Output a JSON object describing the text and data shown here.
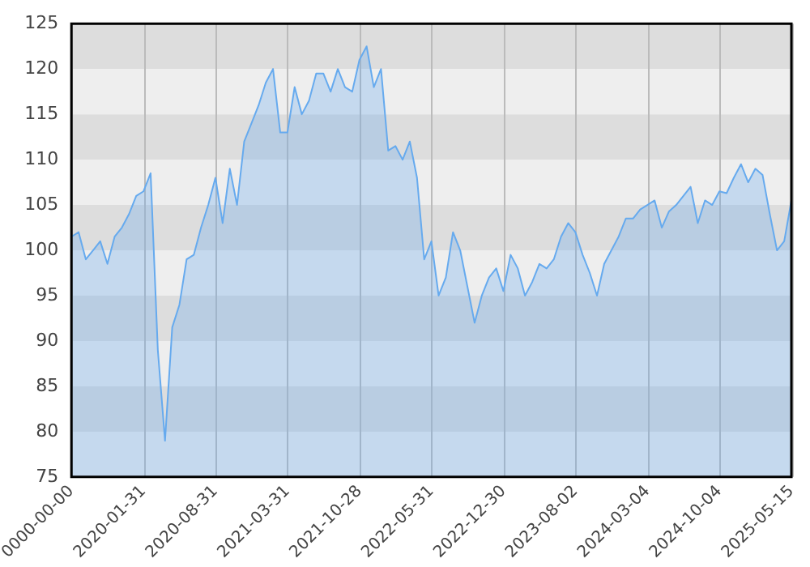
{
  "chart_data": {
    "type": "area",
    "grid": "x",
    "legend": false,
    "marker": "none",
    "categories": [
      "0000-00-00",
      null,
      null,
      null,
      null,
      null,
      null,
      null,
      null,
      null,
      "2020-01-31",
      null,
      null,
      null,
      null,
      null,
      null,
      null,
      null,
      null,
      "2020-08-31",
      null,
      null,
      null,
      null,
      null,
      null,
      null,
      null,
      null,
      "2021-03-31",
      null,
      null,
      null,
      null,
      null,
      null,
      null,
      null,
      null,
      "2021-10-28",
      null,
      null,
      null,
      null,
      null,
      null,
      null,
      null,
      null,
      "2022-05-31",
      null,
      null,
      null,
      null,
      null,
      null,
      null,
      null,
      null,
      "2022-12-30",
      null,
      null,
      null,
      null,
      null,
      null,
      null,
      null,
      null,
      "2023-08-02",
      null,
      null,
      null,
      null,
      null,
      null,
      null,
      null,
      null,
      "2024-03-04",
      null,
      null,
      null,
      null,
      null,
      null,
      null,
      null,
      null,
      "2024-10-04",
      null,
      null,
      null,
      null,
      null,
      null,
      null,
      null,
      null,
      "2025-05-15"
    ],
    "ylim": [
      75,
      125
    ],
    "yticks": [
      75,
      80,
      85,
      90,
      95,
      100,
      105,
      110,
      115,
      120,
      125
    ],
    "bands": [
      {
        "axis": "y",
        "from": 120,
        "to": 125,
        "color": "#dddddd"
      },
      {
        "axis": "y",
        "from": 115,
        "to": 120,
        "color": "#eeeeee"
      },
      {
        "axis": "y",
        "from": 110,
        "to": 115,
        "color": "#dddddd"
      },
      {
        "axis": "y",
        "from": 105,
        "to": 110,
        "color": "#eeeeee"
      },
      {
        "axis": "y",
        "from": 100,
        "to": 105,
        "color": "#dddddd"
      },
      {
        "axis": "y",
        "from": 95,
        "to": 100,
        "color": "#eeeeee"
      },
      {
        "axis": "y",
        "from": 90,
        "to": 95,
        "color": "#dddddd"
      },
      {
        "axis": "y",
        "from": 85,
        "to": 90,
        "color": "#eeeeee"
      },
      {
        "axis": "y",
        "from": 80,
        "to": 85,
        "color": "#dddddd"
      },
      {
        "axis": "y",
        "from": 75,
        "to": 80,
        "color": "#eeeeee"
      }
    ],
    "series": [
      {
        "color": "#66aaee",
        "values": [
          101.5,
          102,
          99,
          100,
          101,
          98.5,
          101.5,
          102.5,
          104,
          106,
          106.5,
          108.5,
          89,
          79,
          91.5,
          94,
          99,
          99.5,
          102.5,
          105,
          108,
          103,
          109,
          105,
          112,
          114,
          116,
          118.5,
          120,
          113,
          113,
          118,
          115,
          116.5,
          119.5,
          119.5,
          117.5,
          120,
          118,
          117.5,
          121,
          122.5,
          118,
          120,
          111,
          111.5,
          110,
          112,
          108,
          99,
          101,
          95,
          97,
          102,
          100,
          96,
          92,
          95,
          97,
          98,
          95.5,
          99.5,
          98,
          95,
          96.5,
          98.5,
          98,
          99,
          101.5,
          103,
          102,
          99.5,
          97.5,
          95,
          98.5,
          100,
          101.5,
          103.5,
          103.5,
          104.5,
          105,
          105.5,
          102.5,
          104.3,
          105,
          106,
          107,
          103,
          105.5,
          105,
          106.5,
          106.3,
          108,
          109.5,
          107.5,
          109,
          108.3,
          104,
          100,
          101,
          105.5
        ]
      }
    ]
  }
}
